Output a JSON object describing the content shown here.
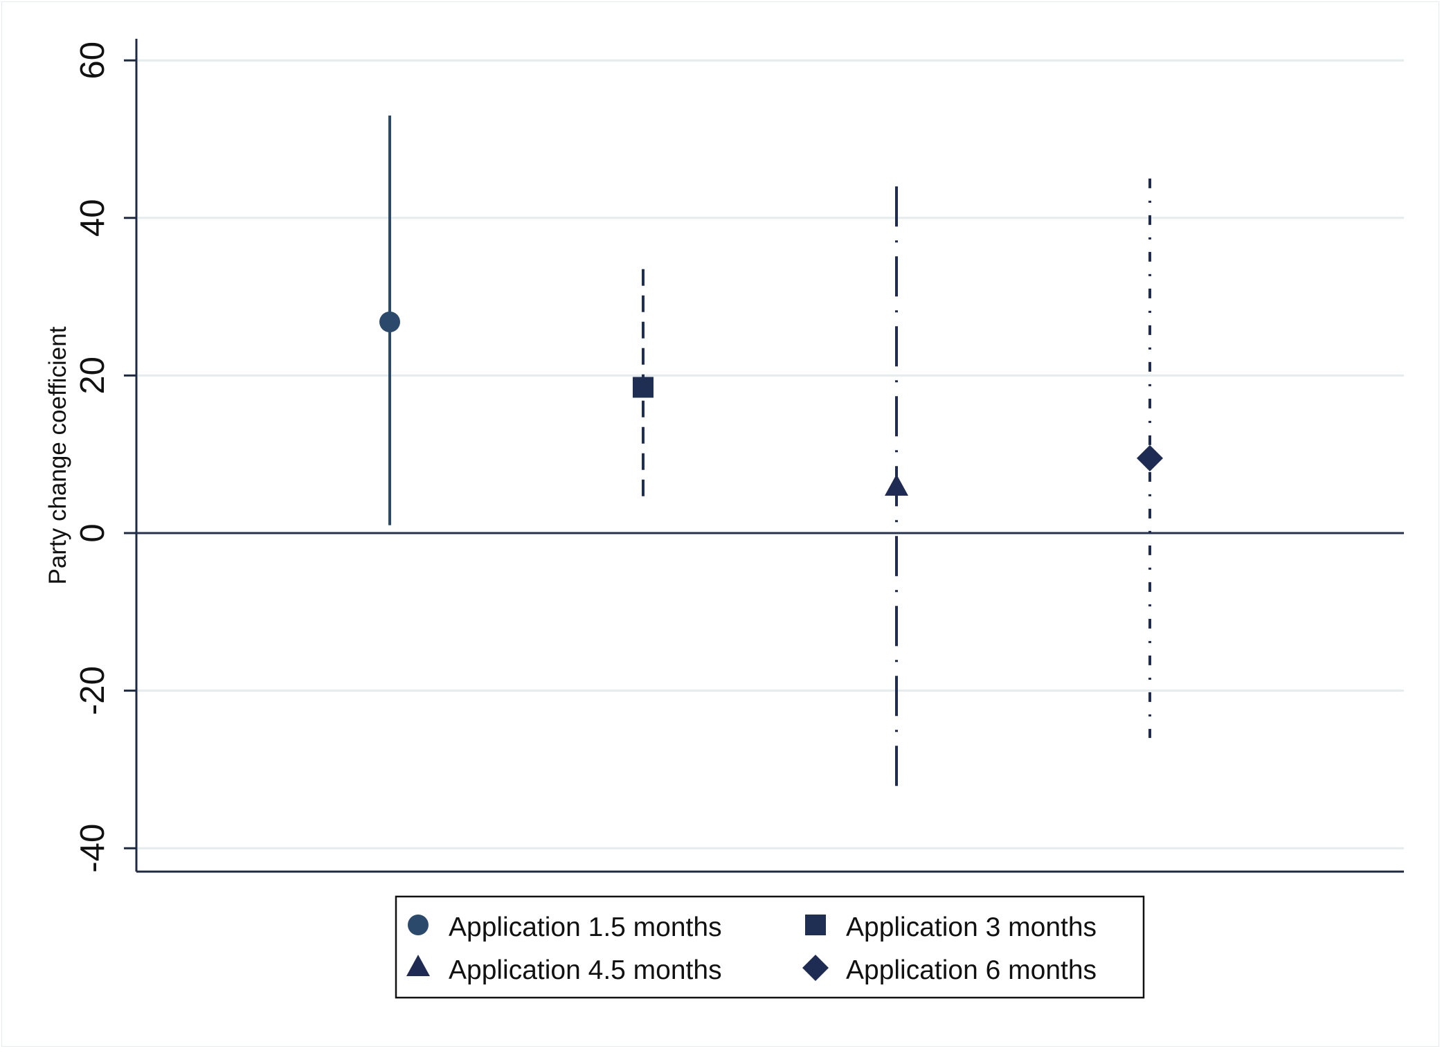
{
  "chart_data": {
    "type": "scatter",
    "subtype": "coefficient-plot-with-confidence-intervals",
    "title": "",
    "xlabel": "",
    "ylabel": "Party change coefficient",
    "ylim": [
      -43,
      63
    ],
    "yticks": [
      "-40",
      "-20",
      "0",
      "20",
      "40",
      "60"
    ],
    "ytick_values": [
      -40,
      -20,
      0,
      20,
      40,
      60
    ],
    "grid": true,
    "reference_line": 0,
    "legend_position": "bottom",
    "series": [
      {
        "name": "Application 1.5 months",
        "x": 1,
        "estimate": 26.8,
        "ci_low": 1.0,
        "ci_high": 53.0,
        "marker": "circle",
        "line_style": "solid",
        "color": "#2b4a6b"
      },
      {
        "name": "Application 3 months",
        "x": 2,
        "estimate": 18.5,
        "ci_low": 4.0,
        "ci_high": 33.5,
        "marker": "square",
        "line_style": "dash",
        "color": "#1f2f54"
      },
      {
        "name": "Application 4.5 months",
        "x": 3,
        "estimate": 5.8,
        "ci_low": -32.5,
        "ci_high": 44.0,
        "marker": "triangle",
        "line_style": "longdash-dot",
        "color": "#1f2b52"
      },
      {
        "name": "Application 6 months",
        "x": 4,
        "estimate": 9.5,
        "ci_low": -26.0,
        "ci_high": 45.0,
        "marker": "diamond",
        "line_style": "dash-dot",
        "color": "#1e2c54"
      }
    ]
  }
}
